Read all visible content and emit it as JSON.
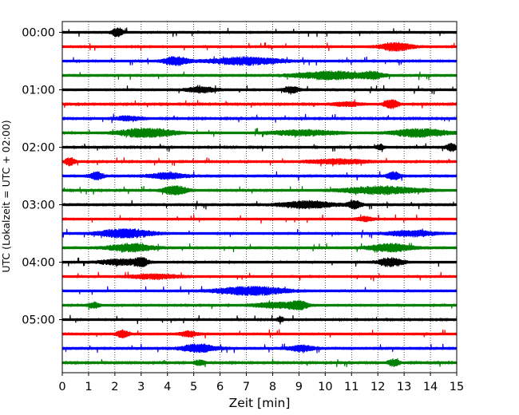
{
  "chart_data": {
    "type": "line",
    "title": "",
    "xlabel": "Zeit  [min]",
    "ylabel": "UTC (Lokalzeit = UTC + 02:00)",
    "xlim": [
      0,
      15
    ],
    "x_ticks": [
      0,
      1,
      2,
      3,
      4,
      5,
      6,
      7,
      8,
      9,
      10,
      11,
      12,
      13,
      14,
      15
    ],
    "vertical_grid": "dotted",
    "trace_interval_min": 15,
    "y_tick_labels": [
      "00:00",
      "01:00",
      "02:00",
      "03:00",
      "04:00",
      "05:00"
    ],
    "trace_colors": [
      "#000000",
      "#ff0000",
      "#0000ff",
      "#008000"
    ],
    "traces": [
      {
        "start": "00:00",
        "color": "#000000",
        "bursts": [
          [
            2.1,
            0.25,
            1.0
          ]
        ]
      },
      {
        "start": "00:15",
        "color": "#ff0000",
        "bursts": [
          [
            12.7,
            0.8,
            0.9
          ]
        ]
      },
      {
        "start": "00:30",
        "color": "#0000ff",
        "bursts": [
          [
            4.3,
            0.6,
            0.9
          ],
          [
            7.0,
            1.8,
            0.8
          ]
        ]
      },
      {
        "start": "00:45",
        "color": "#008000",
        "bursts": [
          [
            10.2,
            1.6,
            0.8
          ],
          [
            11.8,
            0.5,
            0.6
          ]
        ]
      },
      {
        "start": "01:00",
        "color": "#000000",
        "bursts": [
          [
            8.7,
            0.35,
            0.7
          ],
          [
            5.3,
            0.7,
            0.5
          ]
        ]
      },
      {
        "start": "01:15",
        "color": "#ff0000",
        "bursts": [
          [
            12.5,
            0.4,
            0.9
          ],
          [
            10.8,
            0.8,
            0.5
          ]
        ]
      },
      {
        "start": "01:30",
        "color": "#0000ff",
        "bursts": [
          [
            2.5,
            0.8,
            0.5
          ]
        ]
      },
      {
        "start": "01:45",
        "color": "#008000",
        "bursts": [
          [
            3.2,
            1.4,
            1.0
          ],
          [
            13.6,
            1.4,
            0.9
          ],
          [
            9.2,
            1.8,
            0.6
          ]
        ]
      },
      {
        "start": "02:00",
        "color": "#000000",
        "bursts": [
          [
            14.8,
            0.3,
            0.8
          ],
          [
            12.1,
            0.2,
            0.6
          ]
        ]
      },
      {
        "start": "02:15",
        "color": "#ff0000",
        "bursts": [
          [
            0.3,
            0.25,
            0.9
          ],
          [
            10.5,
            1.6,
            0.5
          ]
        ]
      },
      {
        "start": "02:30",
        "color": "#0000ff",
        "bursts": [
          [
            1.3,
            0.3,
            0.8
          ],
          [
            12.6,
            0.3,
            0.8
          ],
          [
            4.0,
            0.8,
            0.6
          ]
        ]
      },
      {
        "start": "02:45",
        "color": "#008000",
        "bursts": [
          [
            4.3,
            0.6,
            1.0
          ],
          [
            12.2,
            2.0,
            0.8
          ]
        ]
      },
      {
        "start": "03:00",
        "color": "#000000",
        "bursts": [
          [
            9.3,
            1.2,
            0.7
          ],
          [
            11.1,
            0.3,
            0.8
          ]
        ]
      },
      {
        "start": "03:15",
        "color": "#ff0000",
        "bursts": [
          [
            11.5,
            0.4,
            0.5
          ]
        ]
      },
      {
        "start": "03:30",
        "color": "#0000ff",
        "bursts": [
          [
            2.4,
            1.2,
            1.0
          ],
          [
            13.3,
            1.2,
            0.6
          ]
        ]
      },
      {
        "start": "03:45",
        "color": "#008000",
        "bursts": [
          [
            2.6,
            1.0,
            0.8
          ],
          [
            12.5,
            1.0,
            0.8
          ]
        ]
      },
      {
        "start": "04:00",
        "color": "#000000",
        "bursts": [
          [
            3.0,
            0.3,
            1.0
          ],
          [
            12.5,
            0.6,
            0.9
          ],
          [
            2.2,
            1.0,
            0.6
          ]
        ]
      },
      {
        "start": "04:15",
        "color": "#ff0000",
        "bursts": [
          [
            3.5,
            1.2,
            0.5
          ]
        ]
      },
      {
        "start": "04:30",
        "color": "#0000ff",
        "bursts": [
          [
            7.2,
            1.6,
            0.9
          ]
        ]
      },
      {
        "start": "04:45",
        "color": "#008000",
        "bursts": [
          [
            9.0,
            0.35,
            0.9
          ],
          [
            8.2,
            1.2,
            0.6
          ],
          [
            1.2,
            0.3,
            0.6
          ]
        ]
      },
      {
        "start": "05:00",
        "color": "#000000",
        "bursts": [
          [
            8.3,
            0.15,
            0.6
          ]
        ]
      },
      {
        "start": "05:15",
        "color": "#ff0000",
        "bursts": [
          [
            2.3,
            0.3,
            0.8
          ],
          [
            4.8,
            0.4,
            0.6
          ]
        ]
      },
      {
        "start": "05:30",
        "color": "#0000ff",
        "bursts": [
          [
            5.2,
            0.8,
            0.8
          ],
          [
            9.1,
            0.6,
            0.6
          ]
        ]
      },
      {
        "start": "05:45",
        "color": "#008000",
        "bursts": [
          [
            12.6,
            0.3,
            0.8
          ],
          [
            5.2,
            0.3,
            0.6
          ]
        ]
      }
    ]
  }
}
